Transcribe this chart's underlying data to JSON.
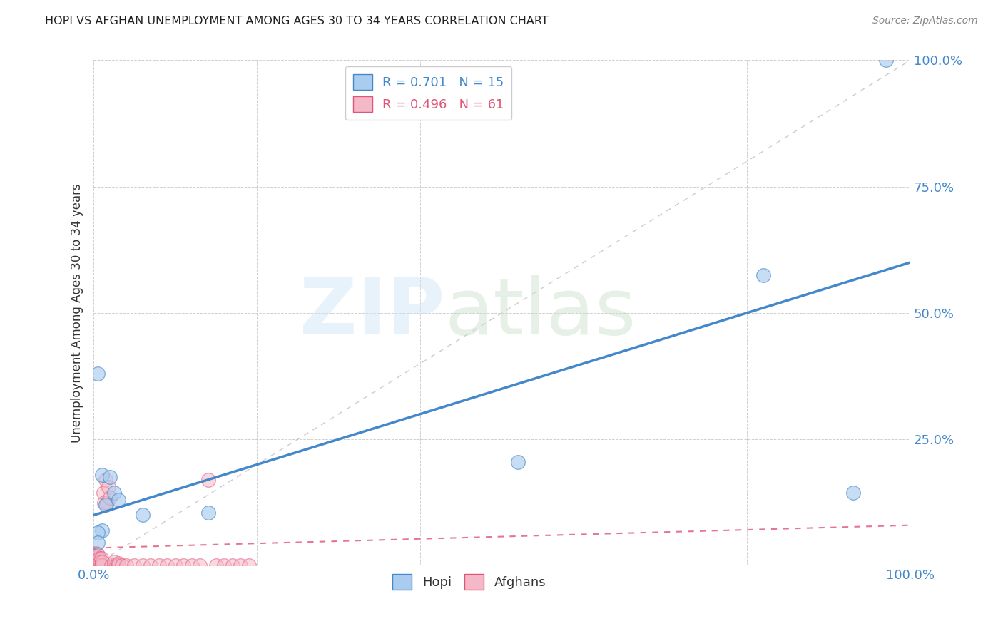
{
  "title": "HOPI VS AFGHAN UNEMPLOYMENT AMONG AGES 30 TO 34 YEARS CORRELATION CHART",
  "source": "Source: ZipAtlas.com",
  "ylabel": "Unemployment Among Ages 30 to 34 years",
  "background_color": "#ffffff",
  "grid_color": "#bbbbbb",
  "hopi_color": "#aaccee",
  "afghan_color": "#f5b8c8",
  "hopi_line_color": "#4488cc",
  "afghan_line_color": "#dd5577",
  "diagonal_color": "#cccccc",
  "hopi_R": 0.701,
  "hopi_N": 15,
  "afghan_R": 0.496,
  "afghan_N": 61,
  "tick_color": "#4488cc",
  "hopi_points": [
    [
      0.005,
      0.38
    ],
    [
      0.01,
      0.18
    ],
    [
      0.01,
      0.07
    ],
    [
      0.015,
      0.12
    ],
    [
      0.02,
      0.175
    ],
    [
      0.025,
      0.145
    ],
    [
      0.03,
      0.13
    ],
    [
      0.06,
      0.1
    ],
    [
      0.14,
      0.105
    ],
    [
      0.52,
      0.205
    ],
    [
      0.82,
      0.575
    ],
    [
      0.93,
      0.145
    ],
    [
      0.97,
      1.0
    ],
    [
      0.005,
      0.065
    ],
    [
      0.005,
      0.045
    ]
  ],
  "afghan_points": [
    [
      0.0,
      0.0
    ],
    [
      0.0,
      0.01
    ],
    [
      0.0,
      0.015
    ],
    [
      0.0,
      0.025
    ],
    [
      0.001,
      0.0
    ],
    [
      0.001,
      0.005
    ],
    [
      0.001,
      0.015
    ],
    [
      0.001,
      0.025
    ],
    [
      0.002,
      0.0
    ],
    [
      0.002,
      0.008
    ],
    [
      0.002,
      0.018
    ],
    [
      0.003,
      0.0
    ],
    [
      0.003,
      0.007
    ],
    [
      0.003,
      0.015
    ],
    [
      0.003,
      0.025
    ],
    [
      0.004,
      0.0
    ],
    [
      0.004,
      0.008
    ],
    [
      0.004,
      0.018
    ],
    [
      0.005,
      0.0
    ],
    [
      0.005,
      0.005
    ],
    [
      0.005,
      0.012
    ],
    [
      0.005,
      0.022
    ],
    [
      0.006,
      0.0
    ],
    [
      0.006,
      0.01
    ],
    [
      0.007,
      0.0
    ],
    [
      0.007,
      0.015
    ],
    [
      0.008,
      0.0
    ],
    [
      0.008,
      0.008
    ],
    [
      0.009,
      0.0
    ],
    [
      0.009,
      0.015
    ],
    [
      0.01,
      0.0
    ],
    [
      0.01,
      0.008
    ],
    [
      0.012,
      0.145
    ],
    [
      0.013,
      0.125
    ],
    [
      0.015,
      0.17
    ],
    [
      0.016,
      0.125
    ],
    [
      0.018,
      0.155
    ],
    [
      0.02,
      0.135
    ],
    [
      0.022,
      0.0
    ],
    [
      0.025,
      0.0
    ],
    [
      0.025,
      0.008
    ],
    [
      0.028,
      0.0
    ],
    [
      0.03,
      0.0
    ],
    [
      0.03,
      0.005
    ],
    [
      0.035,
      0.0
    ],
    [
      0.04,
      0.0
    ],
    [
      0.05,
      0.0
    ],
    [
      0.06,
      0.0
    ],
    [
      0.07,
      0.0
    ],
    [
      0.08,
      0.0
    ],
    [
      0.09,
      0.0
    ],
    [
      0.1,
      0.0
    ],
    [
      0.11,
      0.0
    ],
    [
      0.12,
      0.0
    ],
    [
      0.13,
      0.0
    ],
    [
      0.14,
      0.17
    ],
    [
      0.15,
      0.0
    ],
    [
      0.16,
      0.0
    ],
    [
      0.17,
      0.0
    ],
    [
      0.18,
      0.0
    ],
    [
      0.19,
      0.0
    ]
  ],
  "hopi_reg": [
    0.0,
    1.0,
    0.1,
    0.6
  ],
  "afghan_reg": [
    0.0,
    1.0,
    0.035,
    0.08
  ]
}
